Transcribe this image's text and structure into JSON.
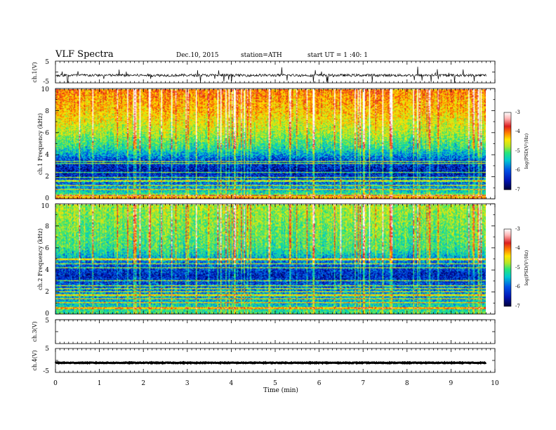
{
  "header": {
    "title": "VLF  Spectra",
    "date": "Dec.10, 2015",
    "station": "station=ATH",
    "start": "start  UT =   1  :40: 1"
  },
  "colors": {
    "spectrogram_colormap": [
      "#00003a",
      "#0014b4",
      "#0050e6",
      "#00c8d2",
      "#28e678",
      "#b4e628",
      "#ffe600",
      "#ff7800",
      "#dc1e1e",
      "#ffb4b4",
      "#ffffff"
    ]
  },
  "chart_data": [
    {
      "type": "line",
      "panel": "ch1-waveform",
      "ylabel": "ch.1(V)",
      "ylim": [
        -5,
        5
      ],
      "yticks": [
        5,
        -5
      ],
      "x_range_min": [
        0,
        9.8
      ],
      "signal_level_v": -1.5,
      "noise_amplitude_v": 0.6
    },
    {
      "type": "heatmap",
      "panel": "ch1-spectrogram",
      "ylabel": "ch.1 Frequency (kHz)",
      "ylim": [
        0,
        10
      ],
      "yticks": [
        0,
        2,
        4,
        6,
        8,
        10
      ],
      "x_range_min": [
        0,
        9.8
      ],
      "colorbar": {
        "label": "log(PSD(V²/Hz)",
        "range": [
          -7,
          -3
        ],
        "ticks": [
          -3,
          -4,
          -5,
          -6,
          -7
        ]
      },
      "intensity_profile": [
        {
          "freq_khz": 0,
          "log_psd": -4.2
        },
        {
          "freq_khz": 0.5,
          "log_psd": -5.6
        },
        {
          "freq_khz": 1.5,
          "log_psd": -6.2
        },
        {
          "freq_khz": 2.5,
          "log_psd": -6.6
        },
        {
          "freq_khz": 3.5,
          "log_psd": -6.3
        },
        {
          "freq_khz": 4.5,
          "log_psd": -5.6
        },
        {
          "freq_khz": 6,
          "log_psd": -5.0
        },
        {
          "freq_khz": 8,
          "log_psd": -4.5
        },
        {
          "freq_khz": 10,
          "log_psd": -4.2
        }
      ]
    },
    {
      "type": "heatmap",
      "panel": "ch2-spectrogram",
      "ylabel": "ch.2 Frequency (kHz)",
      "ylim": [
        0,
        10
      ],
      "yticks": [
        0,
        2,
        4,
        6,
        8,
        10
      ],
      "x_range_min": [
        0,
        9.8
      ],
      "colorbar": {
        "label": "log(PSD(V²/Hz)",
        "range": [
          -7,
          -3
        ],
        "ticks": [
          -3,
          -4,
          -5,
          -6,
          -7
        ]
      },
      "intensity_profile": [
        {
          "freq_khz": 0,
          "log_psd": -5.4
        },
        {
          "freq_khz": 1,
          "log_psd": -5.8
        },
        {
          "freq_khz": 2,
          "log_psd": -6.0
        },
        {
          "freq_khz": 3.5,
          "log_psd": -6.5
        },
        {
          "freq_khz": 4.5,
          "log_psd": -6.2
        },
        {
          "freq_khz": 6,
          "log_psd": -5.4
        },
        {
          "freq_khz": 8,
          "log_psd": -5.2
        },
        {
          "freq_khz": 10,
          "log_psd": -5.0
        }
      ]
    },
    {
      "type": "line",
      "panel": "ch3-waveform",
      "ylabel": "ch.3(V)",
      "ylim": [
        -5,
        5
      ],
      "yticks": [
        5
      ],
      "x_range_min": [
        0,
        9.8
      ],
      "signal_level_v": 5.0,
      "noise_amplitude_v": 0.0
    },
    {
      "type": "line",
      "panel": "ch4-waveform",
      "ylabel": "ch.4(V)",
      "ylim": [
        -5,
        5
      ],
      "yticks": [
        5,
        -5
      ],
      "x_range_min": [
        0,
        9.8
      ],
      "signal_level_v": -1.0,
      "noise_amplitude_v": 0.15
    }
  ],
  "xaxis": {
    "label": "Time  (min)",
    "range": [
      0,
      10
    ],
    "ticks": [
      "0",
      "1",
      "2",
      "3",
      "4",
      "5",
      "6",
      "7",
      "8",
      "9",
      "10"
    ]
  }
}
